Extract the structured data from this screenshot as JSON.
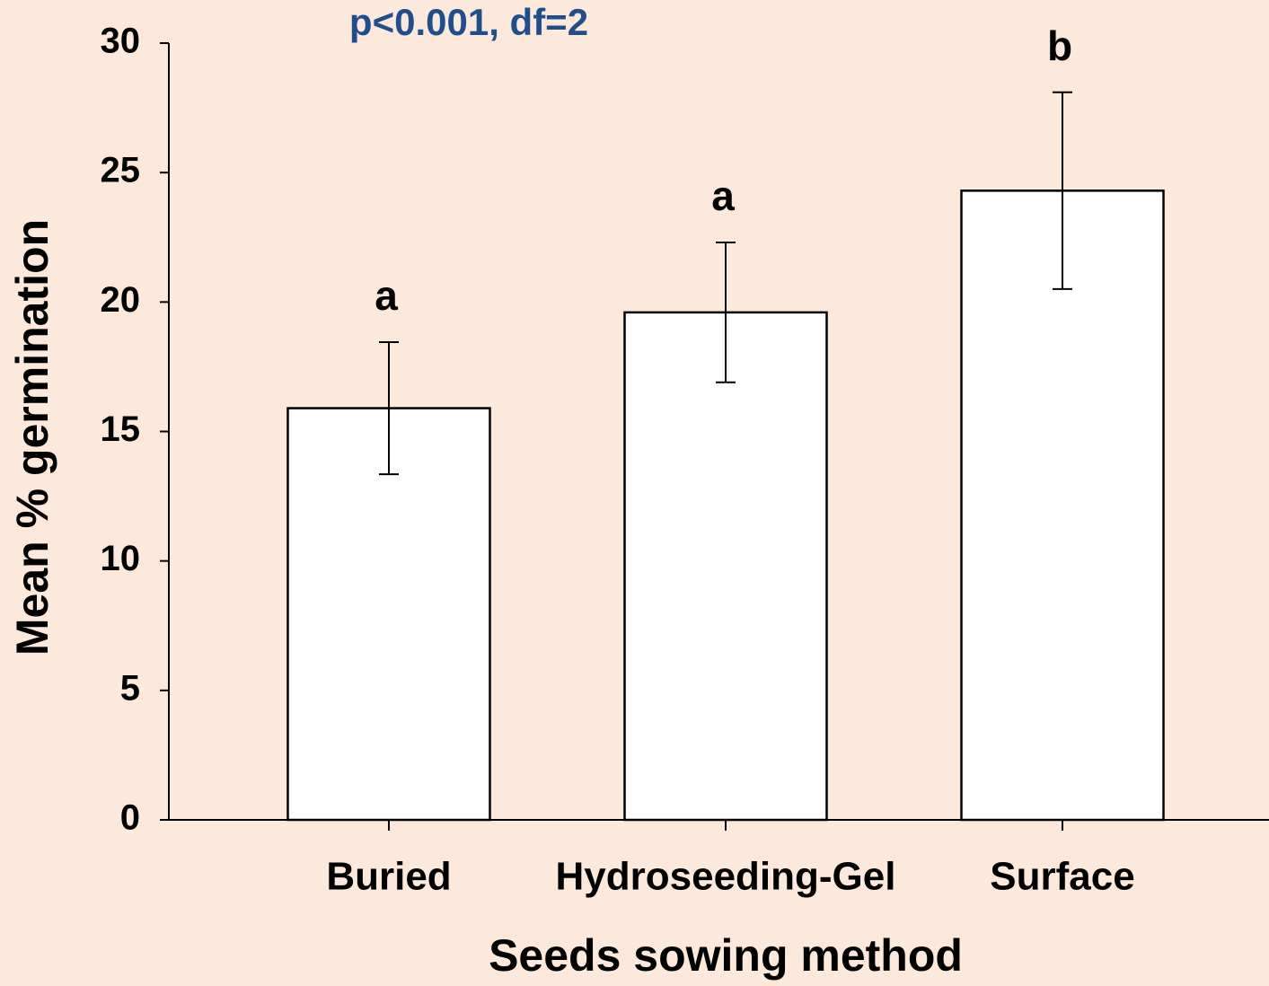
{
  "chart_data": {
    "type": "bar",
    "annotation": "p<0.001, df=2",
    "x_label": "Seeds sowing method",
    "y_label": "Mean % germination",
    "categories": [
      "Buried",
      "Hydroseeding-Gel",
      "Surface"
    ],
    "values": [
      15.9,
      19.6,
      24.3
    ],
    "errors": [
      2.55,
      2.7,
      3.8
    ],
    "group_labels": [
      "a",
      "a",
      "b"
    ],
    "color": "#ffffff",
    "ylim": [
      0,
      30
    ],
    "yticks": [
      0,
      5,
      10,
      15,
      20,
      25,
      30
    ],
    "grid": false
  }
}
